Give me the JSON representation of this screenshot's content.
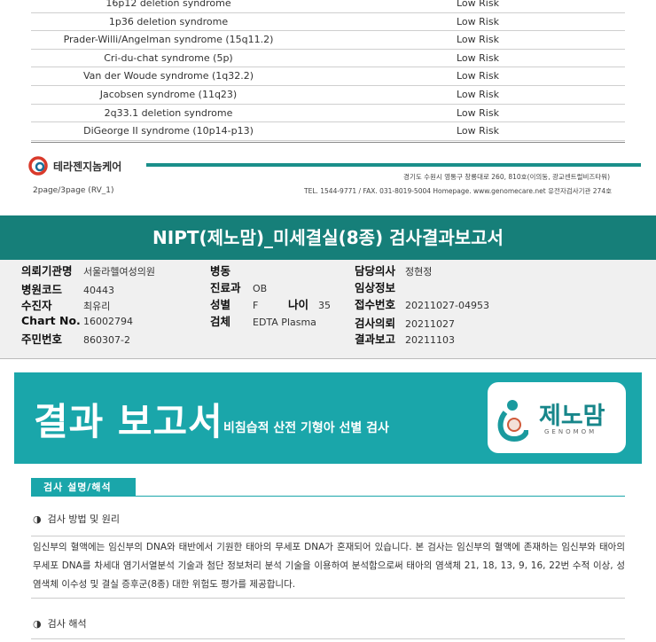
{
  "table": {
    "rows": [
      {
        "syndrome": "16p12 deletion syndrome",
        "risk": "Low Risk"
      },
      {
        "syndrome": "1p36  deletion syndrome",
        "risk": "Low Risk"
      },
      {
        "syndrome": "Prader-Willi/Angelman syndrome (15q11.2)",
        "risk": "Low Risk"
      },
      {
        "syndrome": "Cri-du-chat syndrome (5p)",
        "risk": "Low Risk"
      },
      {
        "syndrome": "Van der Woude syndrome (1q32.2)",
        "risk": "Low Risk"
      },
      {
        "syndrome": "Jacobsen syndrome (11q23)",
        "risk": "Low Risk"
      },
      {
        "syndrome": "2q33.1 deletion syndrome",
        "risk": "Low Risk"
      },
      {
        "syndrome": "DiGeorge II syndrome (10p14-p13)",
        "risk": "Low Risk"
      }
    ]
  },
  "footer": {
    "company": "테라젠지놈케어",
    "page": "2page/3page (RV_1)",
    "address": "경기도 수원시 영통구 창룡대로 260, 810호(이의동, 광교센트럴비즈타워)",
    "contact": "TEL. 1544-9771 / FAX. 031-8019-5004 Homepage. www.genomecare.net 유전자검사기관 274호",
    "accent": "#1a8f8a"
  },
  "report": {
    "title": "NIPT(제노맘)_미세결실(8종) 검사결과보고서",
    "fields": {
      "institution_label": "의뢰기관명",
      "institution": "서울라헬여성의원",
      "code_label": "병원코드",
      "code": "40443",
      "patient_label": "수진자",
      "patient": "최유리",
      "chart_label": "Chart No.",
      "chart": "16002794",
      "id_label": "주민번호",
      "id": "860307-2",
      "ward_label": "병동",
      "ward": "",
      "dept_label": "진료과",
      "dept": "OB",
      "sex_label": "성별",
      "sex": "F",
      "age_label": "나이",
      "age": "35",
      "specimen_label": "검체",
      "specimen": "EDTA Plasma",
      "doctor_label": "담당의사",
      "doctor": "정현정",
      "clinical_label": "임상정보",
      "clinical": "",
      "receipt_label": "접수번호",
      "receipt": "20211027-04953",
      "request_label": "검사의뢰",
      "request": "20211027",
      "result_label": "결과보고",
      "result": "20211103"
    }
  },
  "banner": {
    "title": "결과 보고서",
    "subtitle": "비침습적 산전 기형아 선별 검사",
    "logo_text": "제노맘",
    "logo_sub": "GENOMOM",
    "color": "#1aa6aa"
  },
  "section": {
    "tab": "검사 설명/해석",
    "method_title": "검사 방법 및 원리",
    "method_text": "임신부의 혈액에는 임신부의 DNA와 태반에서 기원한 태아의 무세포 DNA가 혼재되어 있습니다. 본 검사는 임신부의 혈액에 존재하는 임신부와 태아의 무세포 DNA를 차세대 염기서열분석 기술과 첨단 정보처리 분석 기술을 이용하여 분석함으로써 태아의 염색체 21, 18, 13, 9, 16, 22번 수적 이상, 성염색체 이수성 및 결실 증후군(8종) 대한 위험도 평가를 제공합니다.",
    "interp_title": "검사 해석"
  }
}
